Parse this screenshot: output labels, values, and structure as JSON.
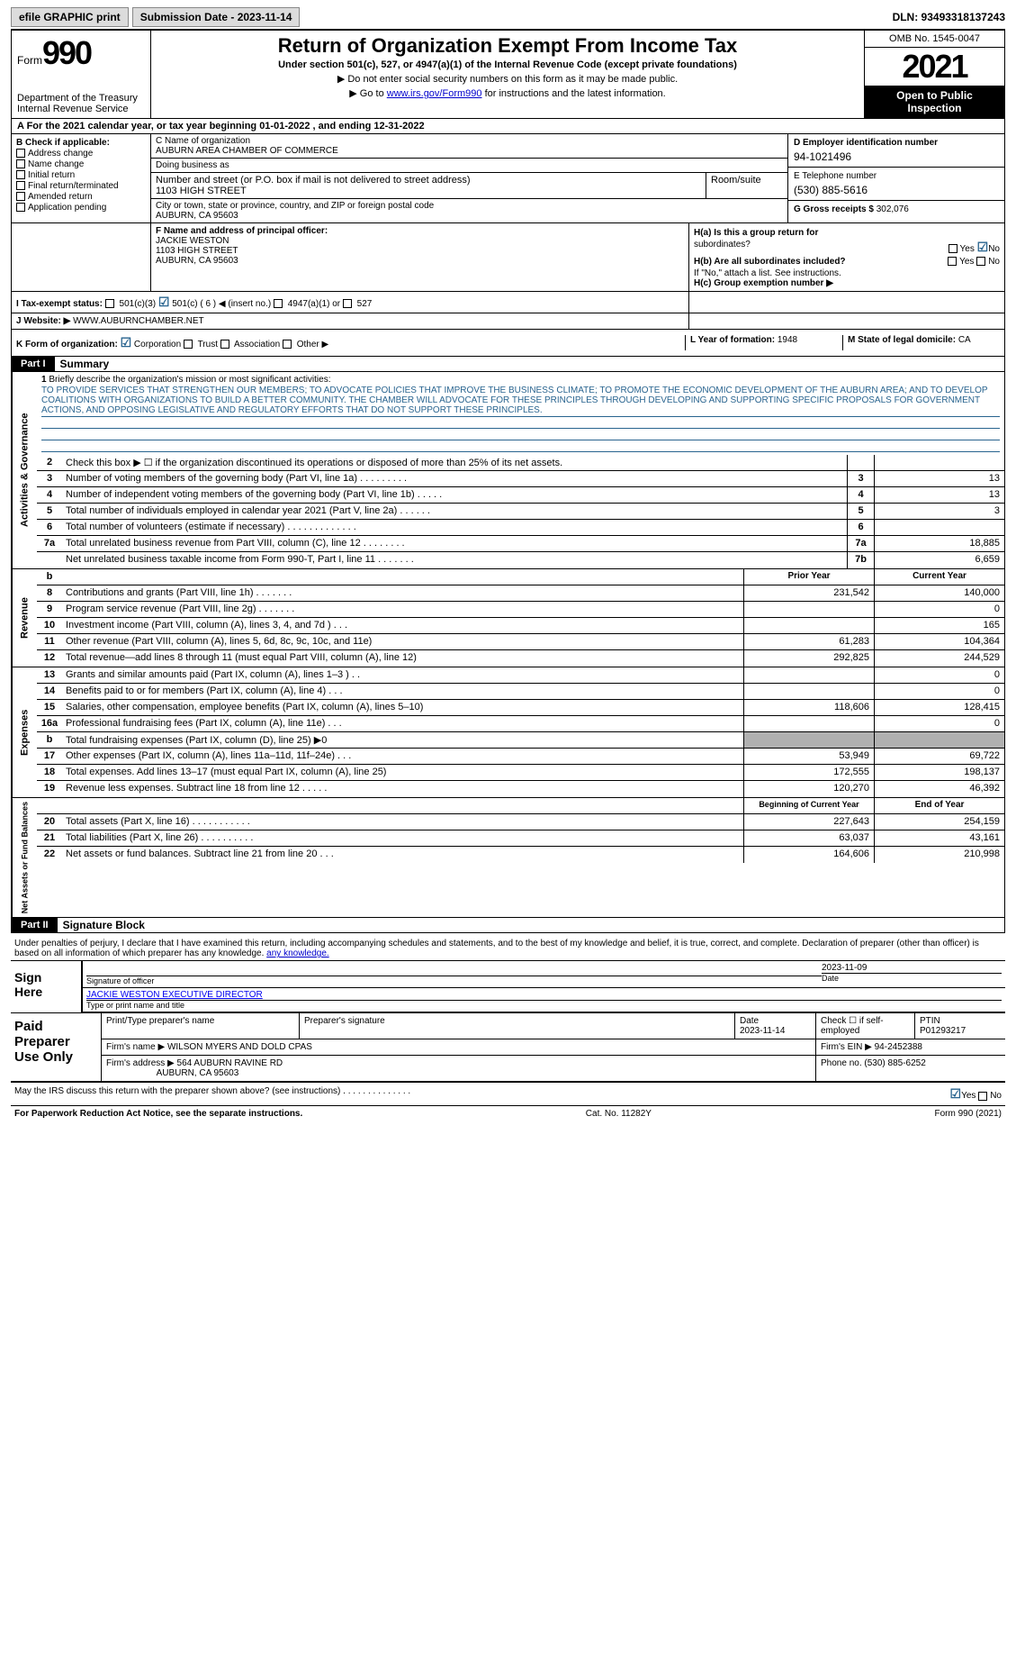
{
  "topbar": {
    "efile": "efile GRAPHIC print",
    "submission": "Submission Date - 2023-11-14",
    "dln": "DLN: 93493318137243"
  },
  "header": {
    "form_label": "Form",
    "form_num": "990",
    "dept": "Department of the Treasury\nInternal Revenue Service",
    "title": "Return of Organization Exempt From Income Tax",
    "subtitle": "Under section 501(c), 527, or 4947(a)(1) of the Internal Revenue Code (except private foundations)",
    "instr1": "▶ Do not enter social security numbers on this form as it may be made public.",
    "instr2_pre": "▶ Go to ",
    "instr2_link": "www.irs.gov/Form990",
    "instr2_post": " for instructions and the latest information.",
    "omb": "OMB No. 1545-0047",
    "year": "2021",
    "open": "Open to Public Inspection"
  },
  "row_a": "A For the 2021 calendar year, or tax year beginning 01-01-2022    , and ending 12-31-2022",
  "col_b": {
    "header": "B Check if applicable:",
    "items": [
      "Address change",
      "Name change",
      "Initial return",
      "Final return/terminated",
      "Amended return",
      "Application pending"
    ]
  },
  "col_c": {
    "name_label": "C Name of organization",
    "name": "AUBURN AREA CHAMBER OF COMMERCE",
    "dba_label": "Doing business as",
    "dba": "",
    "street_label": "Number and street (or P.O. box if mail is not delivered to street address)",
    "street": "1103 HIGH STREET",
    "room_label": "Room/suite",
    "city_label": "City or town, state or province, country, and ZIP or foreign postal code",
    "city": "AUBURN, CA  95603"
  },
  "col_d": {
    "ein_label": "D Employer identification number",
    "ein": "94-1021496",
    "phone_label": "E Telephone number",
    "phone": "(530) 885-5616",
    "gross_label": "G Gross receipts $",
    "gross": "302,076"
  },
  "col_f": {
    "label": "F  Name and address of principal officer:",
    "name": "JACKIE WESTON",
    "street": "1103 HIGH STREET",
    "city": "AUBURN, CA  95603"
  },
  "col_h": {
    "ha": "H(a)  Is this a group return for",
    "ha2": "subordinates?",
    "hb": "H(b)  Are all subordinates included?",
    "hb_note": "If \"No,\" attach a list. See instructions.",
    "hc": "H(c)  Group exemption number ▶",
    "yes": "Yes",
    "no": "No"
  },
  "row_i": {
    "label": "I   Tax-exempt status:",
    "opts": [
      "501(c)(3)",
      "501(c) ( 6 ) ◀ (insert no.)",
      "4947(a)(1) or",
      "527"
    ]
  },
  "row_j": {
    "label": "J   Website: ▶",
    "val": "WWW.AUBURNCHAMBER.NET"
  },
  "row_k": {
    "label": "K Form of organization:",
    "opts": [
      "Corporation",
      "Trust",
      "Association",
      "Other ▶"
    ],
    "l_label": "L Year of formation:",
    "l_val": "1948",
    "m_label": "M State of legal domicile:",
    "m_val": "CA"
  },
  "part1": {
    "label": "Part I",
    "title": "Summary"
  },
  "mission": {
    "num": "1",
    "label": "Briefly describe the organization's mission or most significant activities:",
    "text": "TO PROVIDE SERVICES THAT STRENGTHEN OUR MEMBERS; TO ADVOCATE POLICIES THAT IMPROVE THE BUSINESS CLIMATE; TO PROMOTE THE ECONOMIC DEVELOPMENT OF THE AUBURN AREA; AND TO DEVELOP COALITIONS WITH ORGANIZATIONS TO BUILD A BETTER COMMUNITY. THE CHAMBER WILL ADVOCATE FOR THESE PRINCIPLES THROUGH DEVELOPING AND SUPPORTING SPECIFIC PROPOSALS FOR GOVERNMENT ACTIONS, AND OPPOSING LEGISLATIVE AND REGULATORY EFFORTS THAT DO NOT SUPPORT THESE PRINCIPLES."
  },
  "gov_lines": [
    {
      "num": "2",
      "text": "Check this box ▶ ☐  if the organization discontinued its operations or disposed of more than 25% of its net assets.",
      "box": "",
      "val": ""
    },
    {
      "num": "3",
      "text": "Number of voting members of the governing body (Part VI, line 1a)  .    .    .    .    .    .    .    .    .",
      "box": "3",
      "val": "13"
    },
    {
      "num": "4",
      "text": "Number of independent voting members of the governing body (Part VI, line 1b)   .    .    .    .    .",
      "box": "4",
      "val": "13"
    },
    {
      "num": "5",
      "text": "Total number of individuals employed in calendar year 2021 (Part V, line 2a)   .    .    .    .    .    .",
      "box": "5",
      "val": "3"
    },
    {
      "num": "6",
      "text": "Total number of volunteers (estimate if necessary)  .    .    .    .    .    .    .    .    .    .    .    .    .",
      "box": "6",
      "val": ""
    },
    {
      "num": "7a",
      "text": "Total unrelated business revenue from Part VIII, column (C), line 12  .    .    .    .    .    .    .    .",
      "box": "7a",
      "val": "18,885"
    },
    {
      "num": "",
      "text": "Net unrelated business taxable income from Form 990-T, Part I, line 11   .    .    .    .    .    .    .",
      "box": "7b",
      "val": "6,659"
    }
  ],
  "rev_hdr": {
    "prior": "Prior Year",
    "current": "Current Year"
  },
  "rev_lines": [
    {
      "num": "8",
      "text": "Contributions and grants (Part VIII, line 1h)  .    .    .    .    .    .    .",
      "prior": "231,542",
      "curr": "140,000"
    },
    {
      "num": "9",
      "text": "Program service revenue (Part VIII, line 2g)   .    .    .    .    .    .    .",
      "prior": "",
      "curr": "0"
    },
    {
      "num": "10",
      "text": "Investment income (Part VIII, column (A), lines 3, 4, and 7d )  .    .    .",
      "prior": "",
      "curr": "165"
    },
    {
      "num": "11",
      "text": "Other revenue (Part VIII, column (A), lines 5, 6d, 8c, 9c, 10c, and 11e)",
      "prior": "61,283",
      "curr": "104,364"
    },
    {
      "num": "12",
      "text": "Total revenue—add lines 8 through 11 (must equal Part VIII, column (A), line 12)",
      "prior": "292,825",
      "curr": "244,529"
    }
  ],
  "exp_lines": [
    {
      "num": "13",
      "text": "Grants and similar amounts paid (Part IX, column (A), lines 1–3 )  .    .",
      "prior": "",
      "curr": "0"
    },
    {
      "num": "14",
      "text": "Benefits paid to or for members (Part IX, column (A), line 4)  .    .    .",
      "prior": "",
      "curr": "0"
    },
    {
      "num": "15",
      "text": "Salaries, other compensation, employee benefits (Part IX, column (A), lines 5–10)",
      "prior": "118,606",
      "curr": "128,415"
    },
    {
      "num": "16a",
      "text": "Professional fundraising fees (Part IX, column (A), line 11e)  .    .    .",
      "prior": "",
      "curr": "0"
    },
    {
      "num": "b",
      "text": "Total fundraising expenses (Part IX, column (D), line 25) ▶0",
      "prior": "shaded",
      "curr": "shaded"
    },
    {
      "num": "17",
      "text": "Other expenses (Part IX, column (A), lines 11a–11d, 11f–24e)  .    .    .",
      "prior": "53,949",
      "curr": "69,722"
    },
    {
      "num": "18",
      "text": "Total expenses. Add lines 13–17 (must equal Part IX, column (A), line 25)",
      "prior": "172,555",
      "curr": "198,137"
    },
    {
      "num": "19",
      "text": "Revenue less expenses. Subtract line 18 from line 12  .    .    .    .    .",
      "prior": "120,270",
      "curr": "46,392"
    }
  ],
  "net_hdr": {
    "begin": "Beginning of Current Year",
    "end": "End of Year"
  },
  "net_lines": [
    {
      "num": "20",
      "text": "Total assets (Part X, line 16)  .    .    .    .    .    .    .    .    .    .    .",
      "prior": "227,643",
      "curr": "254,159"
    },
    {
      "num": "21",
      "text": "Total liabilities (Part X, line 26)  .    .    .    .    .    .    .    .    .    .",
      "prior": "63,037",
      "curr": "43,161"
    },
    {
      "num": "22",
      "text": "Net assets or fund balances. Subtract line 21 from line 20   .    .    .",
      "prior": "164,606",
      "curr": "210,998"
    }
  ],
  "sides": {
    "gov": "Activities & Governance",
    "rev": "Revenue",
    "exp": "Expenses",
    "net": "Net Assets or Fund Balances"
  },
  "part2": {
    "label": "Part II",
    "title": "Signature Block",
    "declaration": "Under penalties of perjury, I declare that I have examined this return, including accompanying schedules and statements, and to the best of my knowledge and belief, it is true, correct, and complete. Declaration of preparer (other than officer) is based on all information of which preparer has any knowledge."
  },
  "sign": {
    "label": "Sign Here",
    "sig_label": "Signature of officer",
    "date": "2023-11-09",
    "date_label": "Date",
    "name": "JACKIE WESTON  EXECUTIVE DIRECTOR",
    "name_label": "Type or print name and title"
  },
  "prep": {
    "label": "Paid Preparer Use Only",
    "name_label": "Print/Type preparer's name",
    "sig_label": "Preparer's signature",
    "date_label": "Date",
    "date": "2023-11-14",
    "check_label": "Check ☐ if self-employed",
    "ptin_label": "PTIN",
    "ptin": "P01293217",
    "firm_label": "Firm's name    ▶",
    "firm": "WILSON MYERS AND DOLD CPAS",
    "ein_label": "Firm's EIN ▶",
    "ein": "94-2452388",
    "addr_label": "Firm's address ▶",
    "addr": "564 AUBURN RAVINE RD",
    "addr2": "AUBURN, CA  95603",
    "phone_label": "Phone no.",
    "phone": "(530) 885-6252"
  },
  "discuss": {
    "text": "May the IRS discuss this return with the preparer shown above? (see instructions)  .    .    .    .    .    .    .    .    .    .    .    .    .    .",
    "yes": "Yes",
    "no": "No"
  },
  "footer": {
    "left": "For Paperwork Reduction Act Notice, see the separate instructions.",
    "mid": "Cat. No. 11282Y",
    "right": "Form 990 (2021)"
  }
}
